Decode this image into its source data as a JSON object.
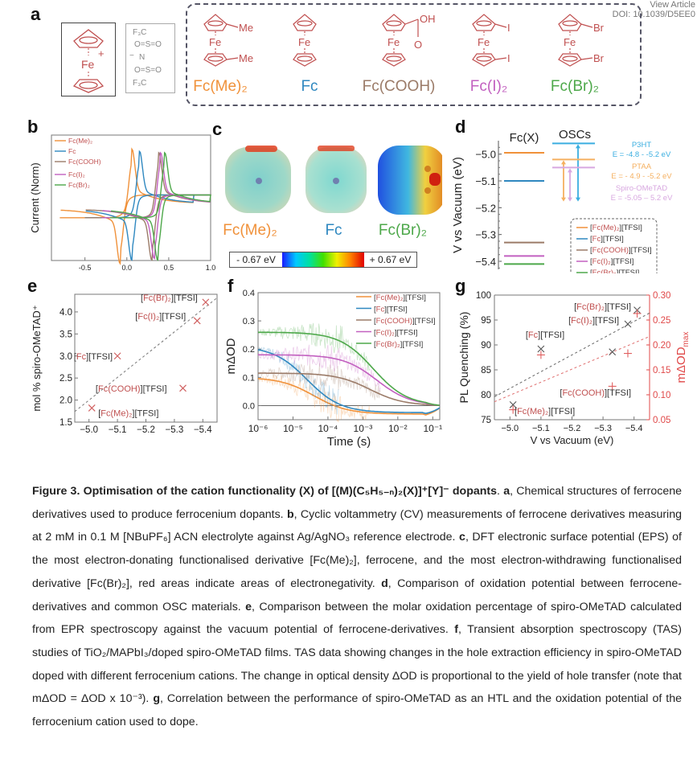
{
  "watermark": {
    "line1": "View Article",
    "line2": "DOI: 10.1039/D5EE0"
  },
  "panels": {
    "a": "a",
    "b": "b",
    "c": "c",
    "d": "d",
    "e": "e",
    "f": "f",
    "g": "g"
  },
  "colors": {
    "fcme2": "#f0913a",
    "fc": "#2f88c0",
    "fccooh": "#9b7b68",
    "fci2": "#c260c0",
    "fcbr2": "#4da84a",
    "structure": "#c05050",
    "red_axis": "#e04848",
    "p3ht": "#3aaee0",
    "ptaa": "#f5b060",
    "spiro": "#d8a8e0"
  },
  "panel_a": {
    "cation_label": "Fe",
    "cation_charge": "+",
    "anion": {
      "cf3_top": "F₃C",
      "so2_top": "O=S=O",
      "n": "N",
      "minus": "−",
      "so2_bottom": "O=S=O",
      "cf3_bottom": "F₃C"
    },
    "molecules": [
      {
        "name": "Fc(Me)₂",
        "metal": "Fe",
        "sub_top": "Me",
        "sub_bottom": "Me"
      },
      {
        "name": "Fc",
        "metal": "Fe",
        "sub_top": "",
        "sub_bottom": ""
      },
      {
        "name": "Fc(COOH)",
        "metal": "Fe",
        "sub_top": "OH",
        "sub_bottom": "O"
      },
      {
        "name": "Fc(I)₂",
        "metal": "Fe",
        "sub_top": "I",
        "sub_bottom": "I"
      },
      {
        "name": "Fc(Br)₂",
        "metal": "Fe",
        "sub_top": "Br",
        "sub_bottom": "Br"
      }
    ]
  },
  "panel_c": {
    "labels": [
      "Fc(Me)₂",
      "Fc",
      "Fc(Br)₂"
    ],
    "colorbar_min": "- 0.67 eV",
    "colorbar_max": "+ 0.67 eV"
  },
  "caption": {
    "title_bold": "Figure 3. Optimisation of the cation functionality (X) of [(M)(C₅H₅₋ₙ)₂(X)]⁺[Y]⁻ dopants",
    "a_label": "a",
    "a_text": ", Chemical structures of ferrocene derivatives used to produce ferrocenium dopants. ",
    "b_label": "b",
    "b_text": ", Cyclic voltammetry (CV) measurements of ferrocene derivatives measuring at 2 mM in 0.1 M [NBuPF₆] ACN electrolyte against Ag/AgNO₃ reference electrode. ",
    "c_label": "c",
    "c_text": ", DFT electronic surface potential (EPS) of the most electron-donating functionalised derivative [Fc(Me)₂], ferrocene, and the most electron-withdrawing functionalised derivative [Fc(Br)₂], red areas indicate areas of electronegativity. ",
    "d_label": "d",
    "d_text": ", Comparison of oxidation potential between ferrocene-derivatives and common OSC materials. ",
    "e_label": "e",
    "e_text": ", Comparison between the molar oxidation percentage of spiro-OMeTAD calculated from EPR spectroscopy against the vacuum potential of ferrocene-derivatives. ",
    "f_label": "f",
    "f_text": ", Transient absorption spectroscopy (TAS) studies of TiO₂/MAPbI₃/doped spiro-OMeTAD films. TAS data showing changes in the hole extraction efficiency in spiro-OMeTAD doped with different ferrocenium cations. The change in optical density ΔOD is proportional to the yield of hole transfer (note that mΔOD = ΔOD x 10⁻³). ",
    "g_label": "g",
    "g_text": ", Correlation between the performance of spiro-OMeTAD as an HTL and the oxidation potential of the ferrocenium cation used to dope."
  },
  "chart_data": [
    {
      "id": "b",
      "type": "line",
      "title": "",
      "xlabel": "V vs Ag/AgNO₃",
      "ylabel": "Current (Norm)",
      "xlim": [
        -0.9,
        1.0
      ],
      "ylim": [
        -1.1,
        1.1
      ],
      "xticks": [
        -0.5,
        0.0,
        0.5,
        1.0
      ],
      "xtick_labels": [
        "-0.5",
        "0.0",
        "0.5",
        "1.0"
      ],
      "legend": "top-left",
      "series": [
        {
          "name": "Fc(Me)₂",
          "E_half": -0.01,
          "start": -0.8,
          "end": 0.8,
          "ox_peak_x": 0.06,
          "red_peak_x": -0.08
        },
        {
          "name": "Fc",
          "E_half": 0.1,
          "start": -0.5,
          "end": 0.8,
          "ox_peak_x": 0.15,
          "red_peak_x": 0.06
        },
        {
          "name": "Fc(COOH)",
          "E_half": 0.34,
          "start": -0.5,
          "end": 1.0,
          "ox_peak_x": 0.38,
          "red_peak_x": 0.3
        },
        {
          "name": "Fc(I)₂",
          "E_half": 0.36,
          "start": -0.3,
          "end": 1.0,
          "ox_peak_x": 0.4,
          "red_peak_x": 0.33
        },
        {
          "name": "Fc(Br)₂",
          "E_half": 0.41,
          "start": -0.2,
          "end": 1.0,
          "ox_peak_x": 0.45,
          "red_peak_x": 0.37
        }
      ]
    },
    {
      "id": "d",
      "type": "bar",
      "subtype": "energy-level-diagram",
      "ylabel": "V vs Vacuum (eV)",
      "ylim": [
        -5.43,
        -4.95
      ],
      "yticks": [
        -5.0,
        -5.1,
        -5.2,
        -5.3,
        -5.4
      ],
      "ytick_labels": [
        "−5.0",
        "−5.1",
        "−5.2",
        "−5.3",
        "−5.4"
      ],
      "column_labels": [
        "Fc(X)",
        "OSCs"
      ],
      "fc_levels": [
        {
          "name": "[Fc(Me)₂][TFSI]",
          "value": -4.995
        },
        {
          "name": "[Fc][TFSI]",
          "value": -5.1
        },
        {
          "name": "[Fc(COOH)][TFSI]",
          "value": -5.33
        },
        {
          "name": "[Fc(I)₂][TFSI]",
          "value": -5.38
        },
        {
          "name": "[Fc(Br)₂][TFSI]",
          "value": -5.41
        }
      ],
      "osc_levels": [
        {
          "name": "P3HT",
          "range_label": "E = -4.8 - -5.2 eV",
          "top": -4.96,
          "bottom": -5.18
        },
        {
          "name": "PTAA",
          "range_label": "E = - 4.9 - -5.2 eV",
          "top": -5.02,
          "bottom": -5.18
        },
        {
          "name": "Spiro-OMeTAD",
          "range_label": "E = -5.05 – 5.2 eV",
          "top": -5.05,
          "bottom": -5.18
        }
      ],
      "legend": "bottom-right",
      "legend_entries": [
        {
          "prefix": "[",
          "core": "Fc(Me)₂",
          "suffix": "][TFSI]"
        },
        {
          "prefix": "[",
          "core": "Fc",
          "suffix": "][TFSI]"
        },
        {
          "prefix": "[",
          "core": "Fc(COOH)",
          "suffix": "][TFSI]"
        },
        {
          "prefix": "[",
          "core": "Fc(I)₂",
          "suffix": "][TFSI]"
        },
        {
          "prefix": "[",
          "core": "Fc(Br)₂",
          "suffix": "][TFSI]"
        }
      ]
    },
    {
      "id": "e",
      "type": "scatter",
      "xlabel": "V vs Vacuum (eV)",
      "ylabel": "mol % spiro-OMeTAD⁺",
      "xlim": [
        -4.95,
        -5.45
      ],
      "ylim": [
        1.5,
        4.4
      ],
      "xticks": [
        -5.0,
        -5.1,
        -5.2,
        -5.3,
        -5.4
      ],
      "xtick_labels": [
        "−5.0",
        "−5.1",
        "−5.2",
        "−5.3",
        "−5.4"
      ],
      "yticks": [
        1.5,
        2.0,
        2.5,
        3.0,
        3.5,
        4.0
      ],
      "ytick_labels": [
        "1.5",
        "2.0",
        "2.5",
        "3.0",
        "3.5",
        "4.0"
      ],
      "points": [
        {
          "label_core": "Fc(Me)₂",
          "label_suffix": "][TFSI]",
          "x": -5.01,
          "y": 1.82
        },
        {
          "label_core": "Fc",
          "label_suffix": "][TFSI]",
          "x": -5.1,
          "y": 3.0
        },
        {
          "label_core": "Fc(COOH)",
          "label_suffix": "][TFSI]",
          "x": -5.33,
          "y": 2.27
        },
        {
          "label_core": "Fc(I)₂",
          "label_suffix": "][TFSI]",
          "x": -5.38,
          "y": 3.8
        },
        {
          "label_core": "Fc(Br)₂",
          "label_suffix": "][TFSI]",
          "x": -5.41,
          "y": 4.22
        }
      ],
      "trendline": {
        "x": [
          -4.95,
          -5.45
        ],
        "y": [
          1.74,
          4.32
        ]
      }
    },
    {
      "id": "f",
      "type": "line",
      "xlabel": "Time (s)",
      "ylabel": "mΔOD",
      "xscale": "log",
      "xlim_log10": [
        -6,
        -0.8
      ],
      "ylim": [
        -0.05,
        0.4
      ],
      "xtick_log10": [
        -6,
        -5,
        -4,
        -3,
        -2,
        -1
      ],
      "xtick_labels": [
        "10⁻⁶",
        "10⁻⁵",
        "10⁻⁴",
        "10⁻³",
        "10⁻²",
        "10⁻¹"
      ],
      "yticks": [
        0.0,
        0.1,
        0.2,
        0.3,
        0.4
      ],
      "ytick_labels": [
        "0.0",
        "0.1",
        "0.2",
        "0.3",
        "0.4"
      ],
      "legend": "top-right",
      "series": [
        {
          "name": "[Fc(Me)₂][TFSI]",
          "core": "Fc(Me)₂",
          "amp": 0.1,
          "tau_log10": -4.4,
          "offset": -0.03,
          "noise_to_log10": -2.8
        },
        {
          "name": "[Fc][TFSI]",
          "core": "Fc",
          "amp": 0.21,
          "tau_log10": -4.6,
          "offset": -0.025,
          "noise_to_log10": -3.7
        },
        {
          "name": "[Fc(COOH)][TFSI]",
          "core": "Fc(COOH)",
          "amp": 0.115,
          "tau_log10": -2.8,
          "offset": 0.0,
          "noise_to_log10": -2.5
        },
        {
          "name": "[Fc(I)₂][TFSI]",
          "core": "Fc(I)₂",
          "amp": 0.18,
          "tau_log10": -2.6,
          "offset": 0.0,
          "noise_to_log10": -2.5
        },
        {
          "name": "[Fc(Br)₂][TFSI]",
          "core": "Fc(Br)₂",
          "amp": 0.26,
          "tau_log10": -2.7,
          "offset": 0.0,
          "noise_to_log10": -2.8
        }
      ]
    },
    {
      "id": "g",
      "type": "scatter",
      "xlabel": "V vs Vacuum (eV)",
      "ylabel_left": "PL Quenching (%)",
      "ylabel_right": "mΔOD",
      "ylabel_right_sub": "max",
      "xlim": [
        -4.95,
        -5.45
      ],
      "ylim_left": [
        75,
        100
      ],
      "ylim_right": [
        0.05,
        0.3
      ],
      "xticks": [
        -5.0,
        -5.1,
        -5.2,
        -5.3,
        -5.4
      ],
      "xtick_labels": [
        "−5.0",
        "−5.1",
        "−5.2",
        "−5.3",
        "−5.4"
      ],
      "yticks_left": [
        75,
        80,
        85,
        90,
        95,
        100
      ],
      "ytick_labels_left": [
        "75",
        "80",
        "85",
        "90",
        "95",
        "100"
      ],
      "yticks_right": [
        0.05,
        0.1,
        0.15,
        0.2,
        0.25,
        0.3
      ],
      "ytick_labels_right": [
        "0.05",
        "0.10",
        "0.15",
        "0.20",
        "0.25",
        "0.30"
      ],
      "series": [
        {
          "name": "PL Quenching",
          "marker": "x",
          "x": [
            -5.01,
            -5.1,
            -5.33,
            -5.38,
            -5.41
          ],
          "y": [
            78.0,
            89.2,
            88.6,
            94.2,
            97.0
          ]
        },
        {
          "name": "mΔOD max",
          "marker": "+",
          "x": [
            -5.01,
            -5.1,
            -5.33,
            -5.38,
            -5.41
          ],
          "y": [
            0.07,
            0.18,
            0.117,
            0.183,
            0.263
          ]
        }
      ],
      "trend_left": {
        "x": [
          -4.95,
          -5.45
        ],
        "y": [
          79.6,
          96.4
        ]
      },
      "trend_right": {
        "x": [
          -4.95,
          -5.45
        ],
        "y": [
          0.086,
          0.217
        ]
      },
      "point_labels": [
        {
          "core": "Fc(Me)₂",
          "suffix": "][TFSI]"
        },
        {
          "core": "Fc",
          "suffix": "][TFSI]"
        },
        {
          "core": "Fc(COOH)",
          "suffix": "][TFSI]"
        },
        {
          "core": "Fc(I)₂",
          "suffix": "][TFSI]"
        },
        {
          "core": "Fc(Br)₂",
          "suffix": "][TFSI]"
        }
      ]
    }
  ]
}
